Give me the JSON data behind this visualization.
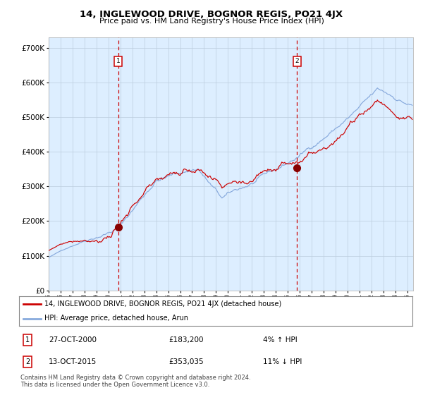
{
  "title": "14, INGLEWOOD DRIVE, BOGNOR REGIS, PO21 4JX",
  "subtitle": "Price paid vs. HM Land Registry's House Price Index (HPI)",
  "legend_line1": "14, INGLEWOOD DRIVE, BOGNOR REGIS, PO21 4JX (detached house)",
  "legend_line2": "HPI: Average price, detached house, Arun",
  "transaction1": {
    "label": "1",
    "date": "27-OCT-2000",
    "price": 183200,
    "year": 2000.83,
    "pct": "4% ↑ HPI"
  },
  "transaction2": {
    "label": "2",
    "date": "13-OCT-2015",
    "price": 353035,
    "year": 2015.78,
    "pct": "11% ↓ HPI"
  },
  "red_line_color": "#cc0000",
  "blue_line_color": "#88aadd",
  "background_color": "#ddeeff",
  "grid_color": "#bbccdd",
  "dashed_line_color": "#cc0000",
  "marker_color": "#880000",
  "box_color": "#cc0000",
  "ylim": [
    0,
    730000
  ],
  "yticks": [
    0,
    100000,
    200000,
    300000,
    400000,
    500000,
    600000,
    700000
  ],
  "footer": "Contains HM Land Registry data © Crown copyright and database right 2024.\nThis data is licensed under the Open Government Licence v3.0."
}
